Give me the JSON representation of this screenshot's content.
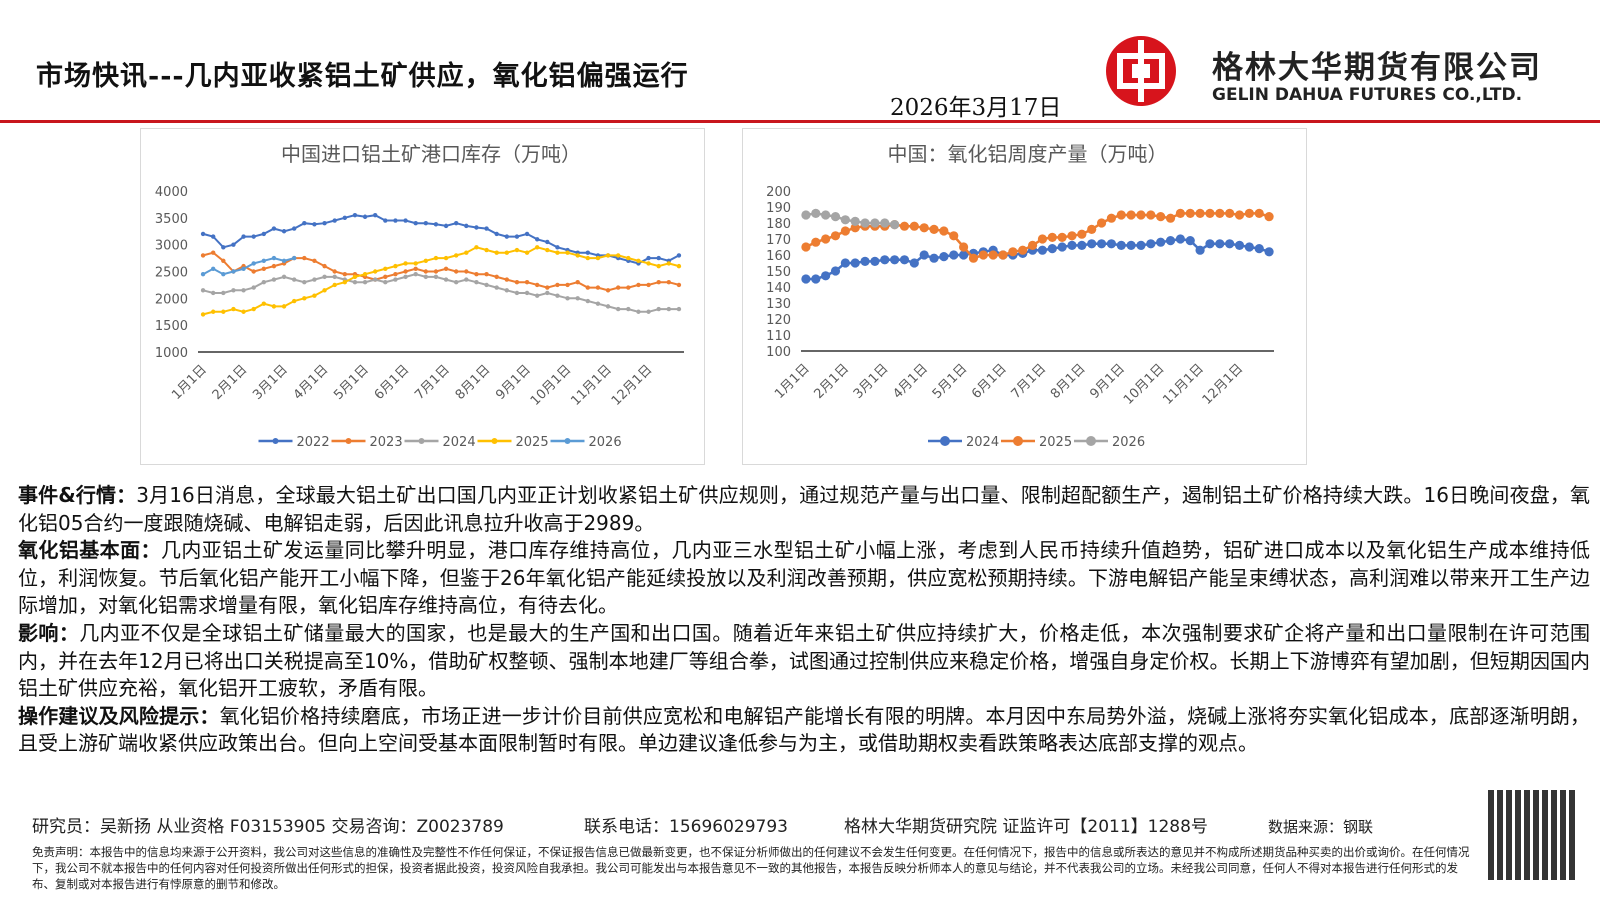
{
  "header": {
    "title": "市场快讯---几内亚收紧铝土矿供应，氧化铝偏强运行",
    "date": "2026年3月17日",
    "company": "格林大华期货有限公司",
    "company_en": "GELIN DAHUA FUTURES CO.,LTD."
  },
  "chart_data": [
    {
      "type": "line",
      "title": "中国进口铝土矿港口库存（万吨）",
      "categories": [
        "1月1日",
        null,
        null,
        null,
        "2月1日",
        null,
        null,
        null,
        "3月1日",
        null,
        null,
        null,
        "4月1日",
        null,
        null,
        null,
        "5月1日",
        null,
        null,
        null,
        "6月1日",
        null,
        null,
        null,
        "7月1日",
        null,
        null,
        null,
        "8月1日",
        null,
        null,
        null,
        "9月1日",
        null,
        null,
        null,
        "10月1日",
        null,
        null,
        null,
        "11月1日",
        null,
        null,
        null,
        "12月1日",
        null,
        null,
        null
      ],
      "ylim": [
        1000,
        4000
      ],
      "yticks": [
        1000,
        1500,
        2000,
        2500,
        3000,
        3500,
        4000
      ],
      "grid": false,
      "series": [
        {
          "name": "2022",
          "color": "#4472c4",
          "values": [
            3200,
            3150,
            2950,
            3000,
            3150,
            3150,
            3200,
            3300,
            3250,
            3300,
            3400,
            3380,
            3400,
            3450,
            3500,
            3550,
            3520,
            3550,
            3450,
            3450,
            3450,
            3400,
            3400,
            3380,
            3350,
            3400,
            3350,
            3320,
            3300,
            3200,
            3150,
            3150,
            3200,
            3100,
            3050,
            2950,
            2900,
            2850,
            2850,
            2800,
            2800,
            2750,
            2700,
            2650,
            2750,
            2750,
            2700,
            2800
          ]
        },
        {
          "name": "2023",
          "color": "#ed7d31",
          "values": [
            2800,
            2850,
            2700,
            2500,
            2600,
            2500,
            2550,
            2600,
            2650,
            2750,
            2750,
            2700,
            2600,
            2500,
            2450,
            2450,
            2400,
            2350,
            2400,
            2450,
            2500,
            2550,
            2500,
            2500,
            2550,
            2500,
            2500,
            2450,
            2450,
            2400,
            2350,
            2300,
            2300,
            2250,
            2200,
            2250,
            2250,
            2300,
            2200,
            2200,
            2150,
            2200,
            2200,
            2250,
            2250,
            2300,
            2300,
            2250
          ]
        },
        {
          "name": "2024",
          "color": "#a5a5a5",
          "values": [
            2150,
            2100,
            2100,
            2150,
            2150,
            2200,
            2300,
            2350,
            2400,
            2350,
            2300,
            2350,
            2400,
            2400,
            2350,
            2300,
            2300,
            2350,
            2300,
            2350,
            2400,
            2450,
            2400,
            2400,
            2350,
            2300,
            2350,
            2300,
            2250,
            2200,
            2150,
            2100,
            2100,
            2050,
            2100,
            2050,
            2000,
            2000,
            1950,
            1900,
            1850,
            1800,
            1800,
            1750,
            1750,
            1800,
            1800,
            1800
          ]
        },
        {
          "name": "2025",
          "color": "#ffc000",
          "values": [
            1700,
            1750,
            1750,
            1800,
            1750,
            1800,
            1900,
            1850,
            1850,
            1950,
            2000,
            2050,
            2150,
            2250,
            2300,
            2400,
            2450,
            2500,
            2550,
            2600,
            2650,
            2650,
            2700,
            2750,
            2750,
            2800,
            2850,
            2950,
            2900,
            2850,
            2850,
            2900,
            2850,
            2950,
            2900,
            2850,
            2850,
            2800,
            2750,
            2750,
            2800,
            2800,
            2750,
            2700,
            2650,
            2600,
            2650,
            2600
          ]
        },
        {
          "name": "2026",
          "color": "#5b9bd5",
          "values": [
            2450,
            2550,
            2450,
            2500,
            2550,
            2650,
            2700,
            2750,
            2700,
            2750,
            null,
            null,
            null,
            null,
            null,
            null,
            null,
            null,
            null,
            null,
            null,
            null,
            null,
            null,
            null,
            null,
            null,
            null,
            null,
            null,
            null,
            null,
            null,
            null,
            null,
            null,
            null,
            null,
            null,
            null,
            null,
            null,
            null,
            null,
            null,
            null,
            null,
            null
          ]
        }
      ]
    },
    {
      "type": "line",
      "title": "中国：氧化铝周度产量（万吨）",
      "categories": [
        "1月1日",
        null,
        null,
        null,
        "2月1日",
        null,
        null,
        null,
        "3月1日",
        null,
        null,
        null,
        "4月1日",
        null,
        null,
        null,
        "5月1日",
        null,
        null,
        null,
        "6月1日",
        null,
        null,
        null,
        "7月1日",
        null,
        null,
        null,
        "8月1日",
        null,
        null,
        null,
        "9月1日",
        null,
        null,
        null,
        "10月1日",
        null,
        null,
        null,
        "11月1日",
        null,
        null,
        null,
        "12月1日",
        null,
        null,
        null
      ],
      "ylim": [
        100,
        200
      ],
      "yticks": [
        100,
        110,
        120,
        130,
        140,
        150,
        160,
        170,
        180,
        190,
        200
      ],
      "grid": false,
      "series": [
        {
          "name": "2024",
          "color": "#4472c4",
          "values": [
            145,
            145,
            147,
            150,
            155,
            155,
            156,
            156,
            157,
            157,
            157,
            155,
            160,
            158,
            159,
            160,
            160,
            161,
            162,
            163,
            160,
            160,
            161,
            163,
            163,
            164,
            165,
            166,
            166,
            167,
            167,
            167,
            166,
            166,
            166,
            167,
            168,
            169,
            170,
            169,
            163,
            167,
            167,
            167,
            166,
            165,
            164,
            162
          ]
        },
        {
          "name": "2025",
          "color": "#ed7d31",
          "values": [
            165,
            168,
            170,
            172,
            175,
            177,
            178,
            178,
            178,
            179,
            178,
            178,
            177,
            176,
            175,
            172,
            165,
            158,
            160,
            160,
            160,
            162,
            163,
            166,
            170,
            171,
            171,
            172,
            173,
            176,
            180,
            183,
            185,
            185,
            185,
            185,
            184,
            183,
            186,
            186,
            186,
            186,
            186,
            186,
            185,
            186,
            186,
            184
          ]
        },
        {
          "name": "2026",
          "color": "#a5a5a5",
          "values": [
            185,
            186,
            185,
            184,
            182,
            181,
            180,
            180,
            180,
            179,
            null,
            null,
            null,
            null,
            null,
            null,
            null,
            null,
            null,
            null,
            null,
            null,
            null,
            null,
            null,
            null,
            null,
            null,
            null,
            null,
            null,
            null,
            null,
            null,
            null,
            null,
            null,
            null,
            null,
            null,
            null,
            null,
            null,
            null,
            null,
            null,
            null,
            null
          ]
        }
      ]
    }
  ],
  "body": [
    {
      "label": "事件&行情：",
      "text": "3月16日消息，全球最大铝土矿出口国几内亚正计划收紧铝土矿供应规则，通过规范产量与出口量、限制超配额生产，遏制铝土矿价格持续大跌。16日晚间夜盘，氧化铝05合约一度跟随烧碱、电解铝走弱，后因此讯息拉升收高于2989。"
    },
    {
      "label": "氧化铝基本面：",
      "text": "几内亚铝土矿发运量同比攀升明显，港口库存维持高位，几内亚三水型铝土矿小幅上涨，考虑到人民币持续升值趋势，铝矿进口成本以及氧化铝生产成本维持低位，利润恢复。节后氧化铝产能开工小幅下降，但鉴于26年氧化铝产能延续投放以及利润改善预期，供应宽松预期持续。下游电解铝产能呈束缚状态，高利润难以带来开工生产边际增加，对氧化铝需求增量有限，氧化铝库存维持高位，有待去化。"
    },
    {
      "label": "影响：",
      "text": "几内亚不仅是全球铝土矿储量最大的国家，也是最大的生产国和出口国。随着近年来铝土矿供应持续扩大，价格走低，本次强制要求矿企将产量和出口量限制在许可范围内，并在去年12月已将出口关税提高至10%，借助矿权整顿、强制本地建厂等组合拳，试图通过控制供应来稳定价格，增强自身定价权。长期上下游博弈有望加剧，但短期因国内铝土矿供应充裕，氧化铝开工疲软，矛盾有限。"
    },
    {
      "label": "操作建议及风险提示：",
      "text": "氧化铝价格持续磨底，市场正进一步计价目前供应宽松和电解铝产能增长有限的明牌。本月因中东局势外溢，烧碱上涨将夯实氧化铝成本，底部逐渐明朗，且受上游矿端收紧供应政策出台。但向上空间受基本面限制暂时有限。单边建议逢低参与为主，或借助期权卖看跌策略表达底部支撑的观点。"
    }
  ],
  "footer": {
    "researcher": "研究员：吴新扬 从业资格  F03153905 交易咨询：Z0023789",
    "phone": "联系电话：15696029793",
    "institute": "格林大华期货研究院 证监许可【2011】1288号",
    "source": "数据来源：钢联",
    "disclaimer": "免责声明：本报告中的信息均来源于公开资料，我公司对这些信息的准确性及完整性不作任何保证，不保证报告信息已做最新变更，也不保证分析师做出的任何建议不会发生任何变更。在任何情况下，报告中的信息或所表达的意见并不构成所述期货品种买卖的出价或询价。在任何情况下，我公司不就本报告中的任何内容对任何投资所做出任何形式的担保，投资者据此投资，投资风险自我承担。我公司可能发出与本报告意见不一致的其他报告，本报告反映分析师本人的意见与结论，并不代表我公司的立场。未经我公司同意，任何人不得对本报告进行任何形式的发布、复制或对本报告进行有悖原意的删节和修改。"
  }
}
